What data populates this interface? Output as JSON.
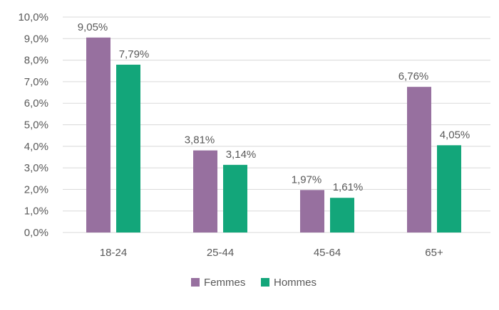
{
  "chart_data": {
    "type": "bar",
    "categories": [
      "18-24",
      "25-44",
      "45-64",
      "65+"
    ],
    "series": [
      {
        "name": "Femmes",
        "values": [
          9.05,
          3.81,
          1.97,
          6.76
        ],
        "labels": [
          "9,05%",
          "3,81%",
          "1,97%",
          "6,76%"
        ],
        "color": "#97709f"
      },
      {
        "name": "Hommes",
        "values": [
          7.79,
          3.14,
          1.61,
          4.05
        ],
        "labels": [
          "7,79%",
          "3,14%",
          "1,61%",
          "4,05%"
        ],
        "color": "#13a67a"
      }
    ],
    "yticks": [
      "0,0%",
      "1,0%",
      "2,0%",
      "3,0%",
      "4,0%",
      "5,0%",
      "6,0%",
      "7,0%",
      "8,0%",
      "9,0%",
      "10,0%"
    ],
    "ylim": [
      0,
      10
    ],
    "grid": true,
    "legend_position": "bottom",
    "title": "",
    "xlabel": "",
    "ylabel": ""
  }
}
